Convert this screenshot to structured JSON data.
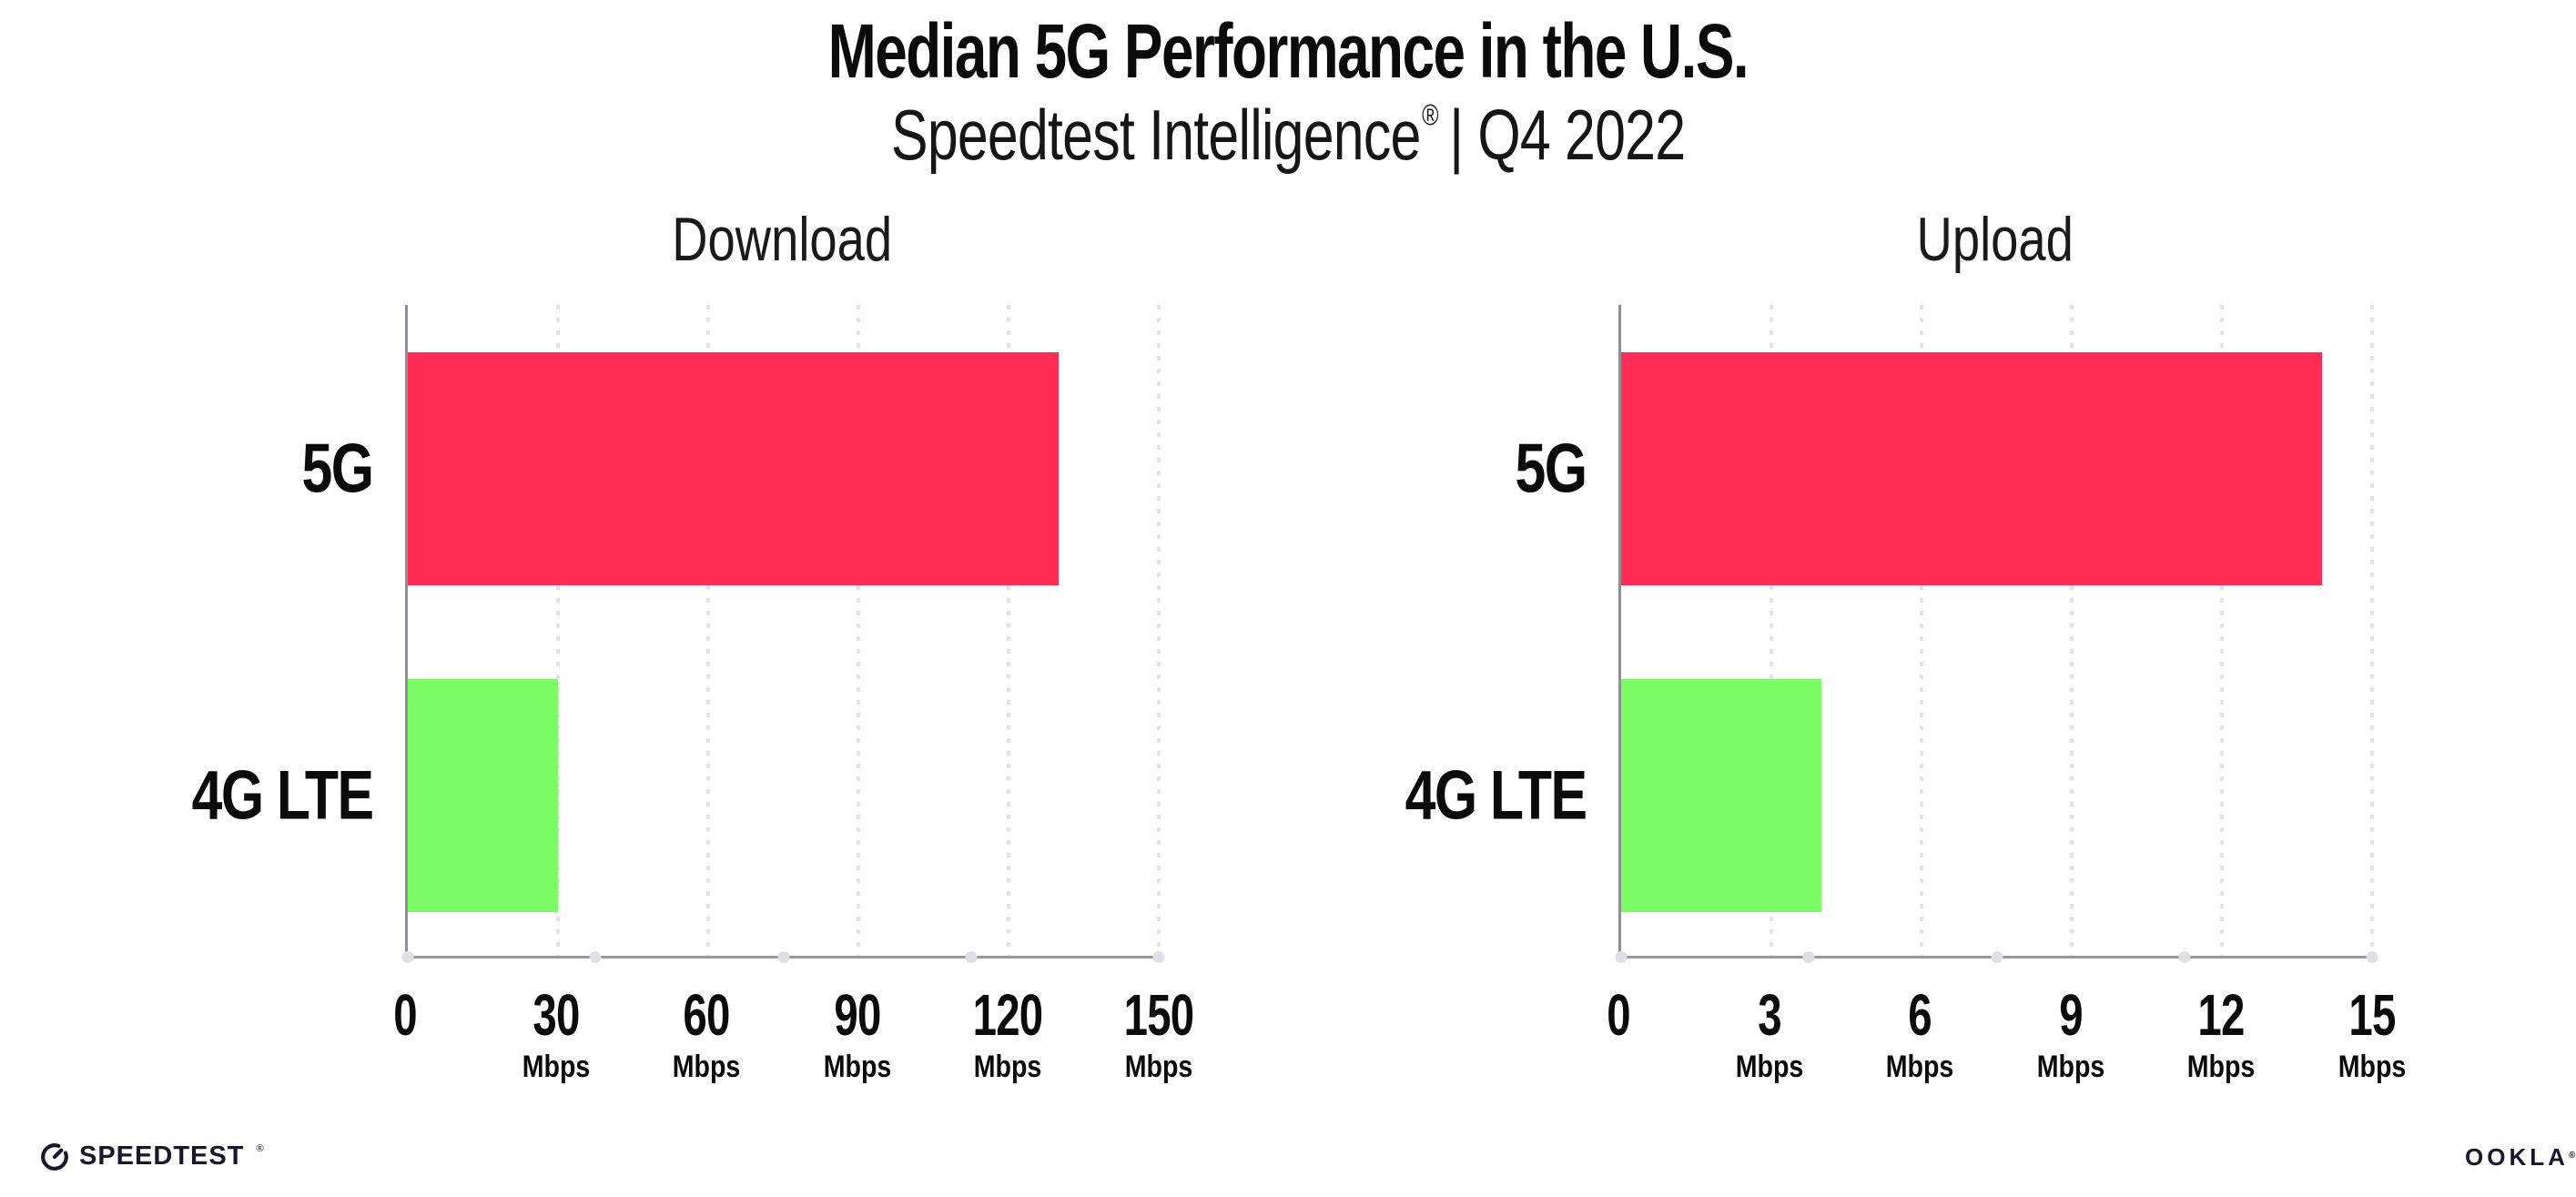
{
  "header": {
    "title": "Median 5G Performance in the U.S.",
    "subtitle": {
      "brand": "Speedtest Intelligence",
      "registered": "®",
      "rest": "| Q4 2022"
    }
  },
  "chart_data": [
    {
      "type": "bar",
      "orientation": "horizontal",
      "title": "Download",
      "categories": [
        "5G",
        "4G LTE"
      ],
      "values": [
        130,
        30
      ],
      "unit": "Mbps",
      "xlim": [
        0,
        150
      ],
      "xticks": [
        0,
        30,
        60,
        90,
        120,
        150
      ],
      "bar_colors": [
        "#FE2D55",
        "#7DFB66"
      ],
      "grid": "dotted vertical gridlines at each tick",
      "legend": "none",
      "ticks": [
        {
          "label": "0",
          "unit": ""
        },
        {
          "label": "30",
          "unit": "Mbps"
        },
        {
          "label": "60",
          "unit": "Mbps"
        },
        {
          "label": "90",
          "unit": "Mbps"
        },
        {
          "label": "120",
          "unit": "Mbps"
        },
        {
          "label": "150",
          "unit": "Mbps"
        }
      ]
    },
    {
      "type": "bar",
      "orientation": "horizontal",
      "title": "Upload",
      "categories": [
        "5G",
        "4G LTE"
      ],
      "values": [
        14,
        4
      ],
      "unit": "Mbps",
      "xlim": [
        0,
        15
      ],
      "xticks": [
        0,
        3,
        6,
        9,
        12,
        15
      ],
      "bar_colors": [
        "#FE2D55",
        "#7DFB66"
      ],
      "grid": "dotted vertical gridlines at each tick",
      "legend": "none",
      "ticks": [
        {
          "label": "0",
          "unit": ""
        },
        {
          "label": "3",
          "unit": "Mbps"
        },
        {
          "label": "6",
          "unit": "Mbps"
        },
        {
          "label": "9",
          "unit": "Mbps"
        },
        {
          "label": "12",
          "unit": "Mbps"
        },
        {
          "label": "15",
          "unit": "Mbps"
        }
      ]
    }
  ],
  "footer": {
    "speedtest_wordmark": "SPEEDTEST",
    "speedtest_registered": "®",
    "ookla_wordmark": "OOKLA",
    "ookla_registered": "®"
  },
  "colors": {
    "background": "#FFFFFF",
    "text": "#0B0B0B",
    "bar_5g": "#FE2D55",
    "bar_4g_lte": "#7DFB66",
    "axis": "#98989E",
    "spine": "#8F8F97",
    "gridline": "#E2E2EC",
    "brand_dark": "#17182B"
  }
}
